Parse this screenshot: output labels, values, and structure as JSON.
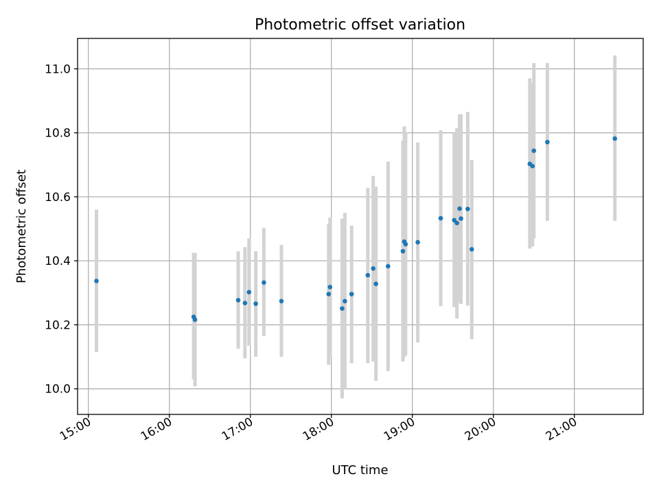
{
  "chart_data": {
    "type": "scatter",
    "title": "Photometric offset variation",
    "xlabel": "UTC time",
    "ylabel": "Photometric offset",
    "x_ticks": [
      "15:00",
      "16:00",
      "17:00",
      "18:00",
      "19:00",
      "20:00",
      "21:00"
    ],
    "xlim": [
      "14:52",
      "21:51"
    ],
    "y_ticks": [
      "10.0",
      "10.2",
      "10.4",
      "10.6",
      "10.8",
      "11.0"
    ],
    "ylim": [
      9.92,
      11.095
    ],
    "grid": true,
    "colors": {
      "point": "#1f77b4",
      "errorbar": "#d3d3d3"
    },
    "points": [
      {
        "x": "15:06",
        "y": 10.337,
        "lo": 10.115,
        "hi": 10.56
      },
      {
        "x": "16:18",
        "y": 10.225,
        "lo": 10.03,
        "hi": 10.425
      },
      {
        "x": "16:19",
        "y": 10.216,
        "lo": 10.008,
        "hi": 10.425
      },
      {
        "x": "16:51",
        "y": 10.277,
        "lo": 10.125,
        "hi": 10.43
      },
      {
        "x": "16:56",
        "y": 10.268,
        "lo": 10.095,
        "hi": 10.443
      },
      {
        "x": "16:59",
        "y": 10.302,
        "lo": 10.135,
        "hi": 10.47
      },
      {
        "x": "17:04",
        "y": 10.266,
        "lo": 10.1,
        "hi": 10.43
      },
      {
        "x": "17:10",
        "y": 10.332,
        "lo": 10.165,
        "hi": 10.503
      },
      {
        "x": "17:23",
        "y": 10.274,
        "lo": 10.1,
        "hi": 10.45
      },
      {
        "x": "17:58",
        "y": 10.296,
        "lo": 10.075,
        "hi": 10.515
      },
      {
        "x": "17:59",
        "y": 10.318,
        "lo": 10.1,
        "hi": 10.535
      },
      {
        "x": "18:08",
        "y": 10.251,
        "lo": 9.97,
        "hi": 10.532
      },
      {
        "x": "18:10",
        "y": 10.274,
        "lo": 10.0,
        "hi": 10.55
      },
      {
        "x": "18:15",
        "y": 10.296,
        "lo": 10.08,
        "hi": 10.51
      },
      {
        "x": "18:27",
        "y": 10.355,
        "lo": 10.08,
        "hi": 10.628
      },
      {
        "x": "18:31",
        "y": 10.376,
        "lo": 10.085,
        "hi": 10.665
      },
      {
        "x": "18:33",
        "y": 10.328,
        "lo": 10.025,
        "hi": 10.632
      },
      {
        "x": "18:42",
        "y": 10.383,
        "lo": 10.055,
        "hi": 10.71
      },
      {
        "x": "18:53",
        "y": 10.43,
        "lo": 10.085,
        "hi": 10.775
      },
      {
        "x": "18:54",
        "y": 10.46,
        "lo": 10.1,
        "hi": 10.82
      },
      {
        "x": "18:55",
        "y": 10.452,
        "lo": 10.105,
        "hi": 10.8
      },
      {
        "x": "19:04",
        "y": 10.458,
        "lo": 10.145,
        "hi": 10.77
      },
      {
        "x": "19:21",
        "y": 10.533,
        "lo": 10.258,
        "hi": 10.808
      },
      {
        "x": "19:31",
        "y": 10.527,
        "lo": 10.255,
        "hi": 10.8
      },
      {
        "x": "19:33",
        "y": 10.518,
        "lo": 10.22,
        "hi": 10.815
      },
      {
        "x": "19:35",
        "y": 10.563,
        "lo": 10.27,
        "hi": 10.858
      },
      {
        "x": "19:36",
        "y": 10.532,
        "lo": 10.265,
        "hi": 10.858
      },
      {
        "x": "19:41",
        "y": 10.562,
        "lo": 10.26,
        "hi": 10.865
      },
      {
        "x": "19:44",
        "y": 10.436,
        "lo": 10.155,
        "hi": 10.715
      },
      {
        "x": "20:27",
        "y": 10.703,
        "lo": 10.438,
        "hi": 10.97
      },
      {
        "x": "20:29",
        "y": 10.696,
        "lo": 10.445,
        "hi": 10.955
      },
      {
        "x": "20:30",
        "y": 10.744,
        "lo": 10.47,
        "hi": 11.018
      },
      {
        "x": "20:40",
        "y": 10.771,
        "lo": 10.525,
        "hi": 11.018
      },
      {
        "x": "21:30",
        "y": 10.782,
        "lo": 10.525,
        "hi": 11.042
      }
    ]
  }
}
